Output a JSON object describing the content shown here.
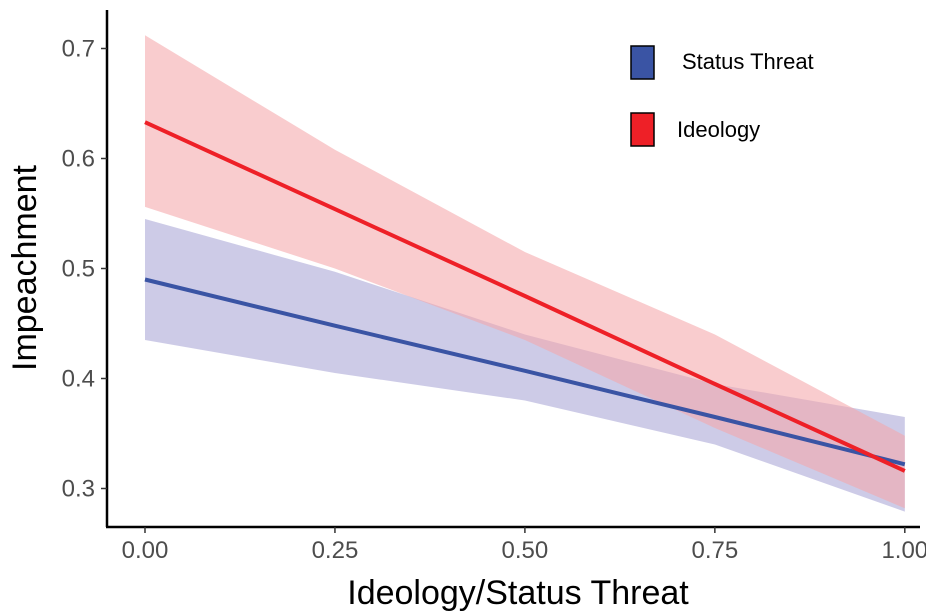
{
  "chart_data": {
    "type": "line",
    "title": "",
    "xlabel": "Ideology/Status Threat",
    "ylabel": "Impeachment",
    "xlim": [
      -0.05,
      1.02
    ],
    "ylim": [
      0.265,
      0.735
    ],
    "x_ticks": [
      0.0,
      0.25,
      0.5,
      0.75,
      1.0
    ],
    "x_tick_labels": [
      "0.00",
      "0.25",
      "0.50",
      "0.75",
      "1.00"
    ],
    "y_ticks": [
      0.3,
      0.4,
      0.5,
      0.6,
      0.7
    ],
    "y_tick_labels": [
      "0.3",
      "0.4",
      "0.5",
      "0.6",
      "0.7"
    ],
    "grid": false,
    "legend_position": "top-right",
    "series": [
      {
        "name": "Ideology",
        "color": "#ee2027",
        "band_color": "#f4a7ab",
        "x": [
          0,
          0.25,
          0.5,
          0.75,
          1.0
        ],
        "y": [
          0.633,
          0.554,
          0.475,
          0.395,
          0.316
        ],
        "lower": [
          0.556,
          0.5,
          0.435,
          0.355,
          0.282
        ],
        "upper": [
          0.712,
          0.608,
          0.515,
          0.44,
          0.348
        ]
      },
      {
        "name": "Status Threat",
        "color": "#3a54a4",
        "band_color": "#a8a6d6",
        "x": [
          0,
          0.25,
          0.5,
          0.75,
          1.0
        ],
        "y": [
          0.49,
          0.448,
          0.407,
          0.365,
          0.322
        ],
        "lower": [
          0.435,
          0.405,
          0.38,
          0.34,
          0.279
        ],
        "upper": [
          0.545,
          0.497,
          0.44,
          0.395,
          0.365
        ]
      }
    ]
  }
}
